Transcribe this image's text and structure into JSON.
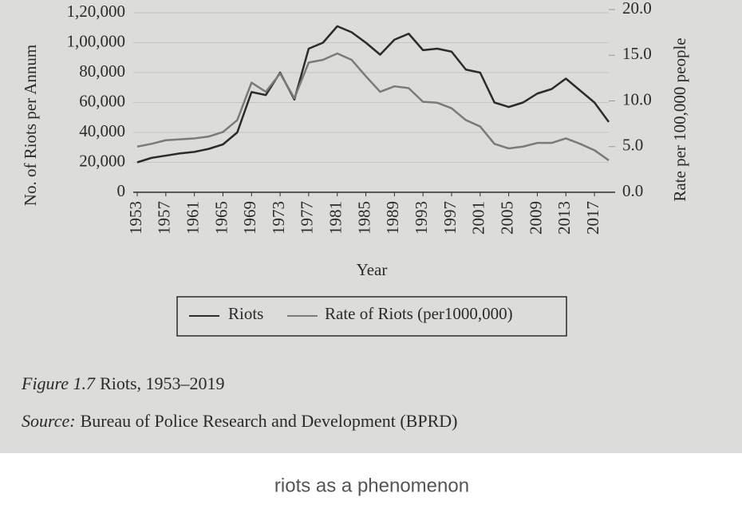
{
  "chart_data": {
    "type": "line",
    "x": [
      1953,
      1955,
      1957,
      1959,
      1961,
      1963,
      1965,
      1967,
      1969,
      1971,
      1973,
      1975,
      1977,
      1979,
      1981,
      1983,
      1985,
      1987,
      1989,
      1991,
      1993,
      1995,
      1997,
      1999,
      2001,
      2003,
      2005,
      2007,
      2009,
      2011,
      2013,
      2015,
      2017,
      2019
    ],
    "xlim": [
      1953,
      2019
    ],
    "xticks": [
      1953,
      1957,
      1961,
      1965,
      1969,
      1973,
      1977,
      1981,
      1985,
      1989,
      1993,
      1997,
      2001,
      2005,
      2009,
      2013,
      2017
    ],
    "xlabel": "Year",
    "ylabel": "No. of Riots per Annum",
    "y2label": "Rate per 100,000 people",
    "ylim": [
      0,
      120000
    ],
    "yticks": [
      0,
      {
        "value": 20000,
        "label": "20,000"
      },
      {
        "value": 40000,
        "label": "40,000"
      },
      {
        "value": 60000,
        "label": "60,000"
      },
      {
        "value": 80000,
        "label": "80,000"
      },
      {
        "value": 100000,
        "label": "1,00,000"
      },
      {
        "value": 120000,
        "label": "1,20,000"
      }
    ],
    "y2lim": [
      0,
      20
    ],
    "y2ticks": [
      {
        "value": 0,
        "label": "0.0"
      },
      {
        "value": 5,
        "label": "5.0"
      },
      {
        "value": 10,
        "label": "10.0"
      },
      {
        "value": 15,
        "label": "15.0"
      },
      {
        "value": 20,
        "label": "20.0"
      }
    ],
    "grid": true,
    "series": [
      {
        "name": "Riots",
        "color": "#2b2b2b",
        "values": [
          20000,
          23000,
          24500,
          26000,
          27000,
          29000,
          32000,
          40000,
          67000,
          65000,
          80000,
          62000,
          96000,
          100000,
          111000,
          107000,
          100000,
          92000,
          102000,
          106000,
          95000,
          96000,
          94000,
          82000,
          80000,
          60000,
          57000,
          60000,
          66000,
          69000,
          76000,
          68000,
          60000,
          47000
        ]
      },
      {
        "name": "Rate of Riots (per1000,000)",
        "color": "#7a7a7a",
        "axis": "y2",
        "values": [
          5.0,
          5.3,
          5.7,
          5.8,
          5.9,
          6.1,
          6.6,
          7.9,
          12.0,
          11.0,
          13.0,
          10.3,
          14.2,
          14.5,
          15.2,
          14.5,
          12.7,
          11.0,
          11.6,
          11.4,
          9.9,
          9.8,
          9.2,
          7.9,
          7.2,
          5.3,
          4.8,
          5.0,
          5.4,
          5.4,
          5.9,
          5.3,
          4.6,
          3.5
        ]
      }
    ]
  },
  "figure": {
    "label": "Figure 1.7",
    "title": "Riots, 1953–2019"
  },
  "source": {
    "label": "Source:",
    "text": "Bureau of Police Research and Development (BPRD)"
  },
  "caption": "riots as a phenomenon"
}
